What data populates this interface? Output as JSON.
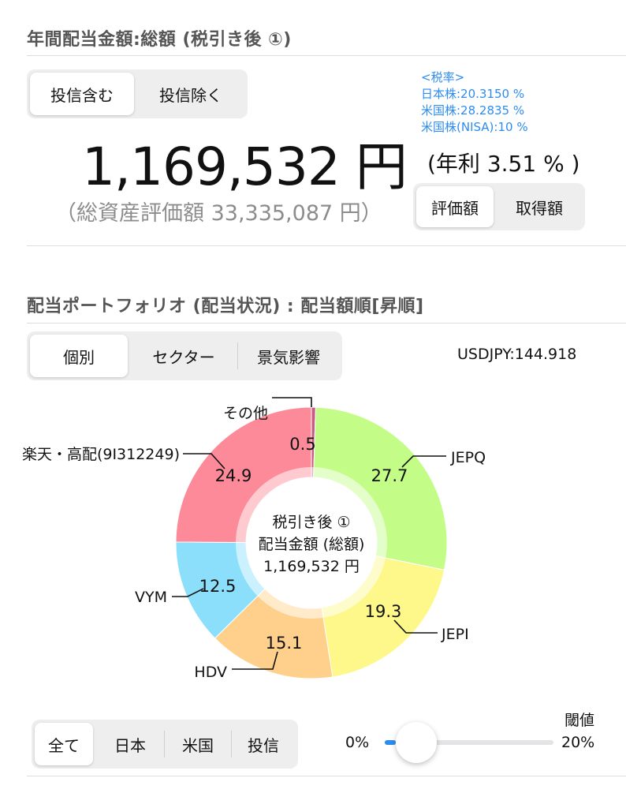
{
  "summary": {
    "title": "年間配当金額:総額 (税引き後 ①)",
    "toggle": [
      "投信含む",
      "投信除く"
    ],
    "amount": "1,169,532 円",
    "total_assets": "（総資産評価額 33,335,087 円）",
    "tax_header": "<税率>",
    "tax_japan": "日本株:20.3150 %",
    "tax_us": "米国株:28.2835 %",
    "tax_us_nisa": "米国株(NISA):10 %",
    "yield": "(年利 3.51 % )",
    "value_toggle": [
      "評価額",
      "取得額"
    ]
  },
  "portfolio": {
    "title": "配当ポートフォリオ (配当状況) : 配当額順[昇順]",
    "view_tabs": [
      "個別",
      "セクター",
      "景気影響"
    ],
    "fx_rate": "USDJPY:144.918",
    "center_line1": "税引き後 ①",
    "center_line2": "配当金額 (総額)",
    "center_line3": "1,169,532 円"
  },
  "chart_data": {
    "type": "pie",
    "categories": [
      "その他",
      "JEPQ",
      "JEPI",
      "HDV",
      "VYM",
      "楽天・高配(9I312249)"
    ],
    "values": [
      0.5,
      27.7,
      19.3,
      15.1,
      12.5,
      24.9
    ],
    "value_labels": [
      "0.5",
      "27.7",
      "19.3",
      "15.1",
      "12.5",
      "24.9"
    ],
    "colors": [
      "#c95c86",
      "#c3fd88",
      "#fdf889",
      "#ffd08b",
      "#8bdffb",
      "#fd8a98"
    ]
  },
  "filters": {
    "tabs": [
      "全て",
      "日本",
      "米国",
      "投信"
    ],
    "threshold_label": "閾値",
    "slider_min": "0%",
    "slider_max": "20%",
    "slider_value": 0
  }
}
